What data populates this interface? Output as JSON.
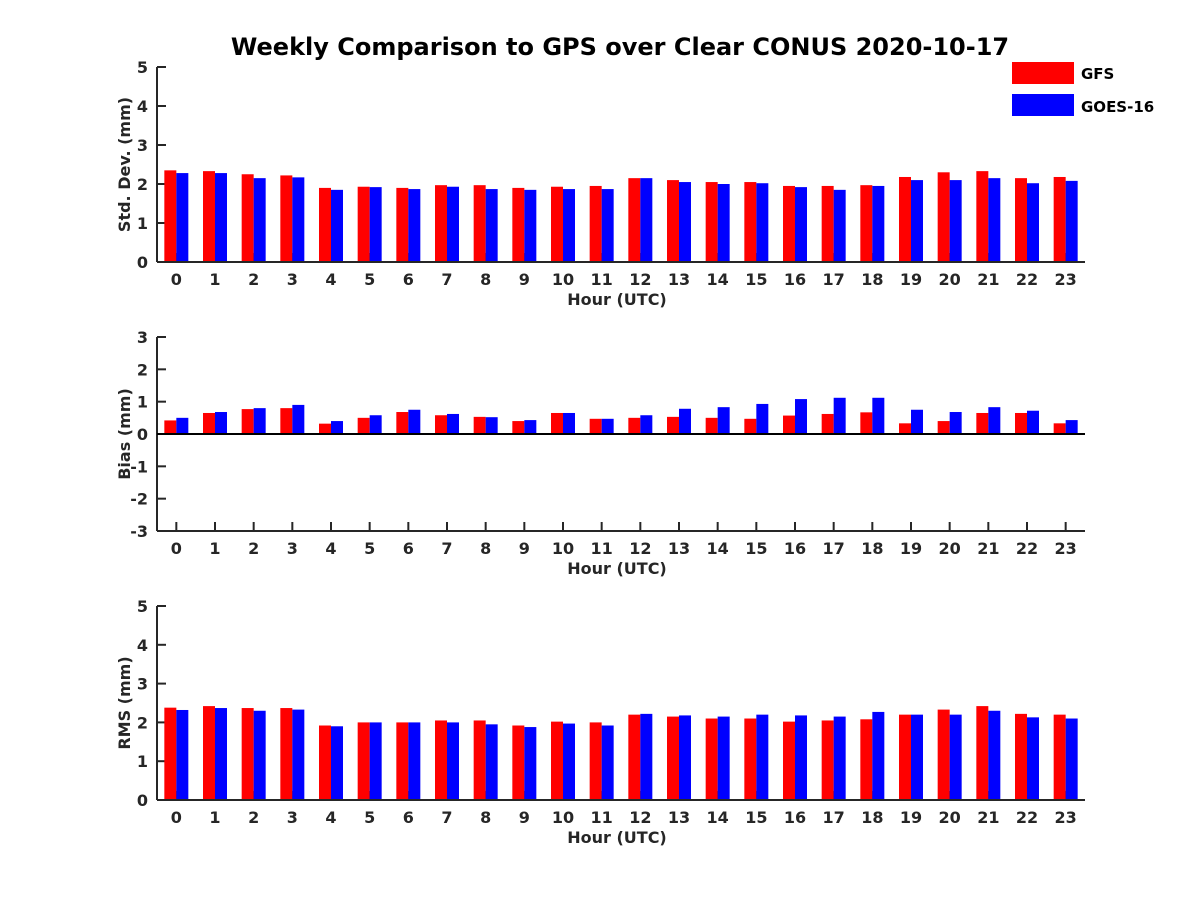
{
  "chart_data": {
    "type": "bar",
    "title": "Weekly Comparison to GPS over Clear CONUS 2020-10-17",
    "categories": [
      "0",
      "1",
      "2",
      "3",
      "4",
      "5",
      "6",
      "7",
      "8",
      "9",
      "10",
      "11",
      "12",
      "13",
      "14",
      "15",
      "16",
      "17",
      "18",
      "19",
      "20",
      "21",
      "22",
      "23"
    ],
    "legend": {
      "placement": "top-right"
    },
    "colors": {
      "GFS": "#ff0000",
      "GOES-16": "#0000ff"
    },
    "panels": [
      {
        "xlabel": "Hour (UTC)",
        "ylabel": "Std. Dev. (mm)",
        "ylim": [
          0,
          5
        ],
        "yticks": [
          "0",
          "1",
          "2",
          "3",
          "4",
          "5"
        ],
        "series": [
          {
            "name": "GFS",
            "values": [
              2.35,
              2.33,
              2.25,
              2.22,
              1.9,
              1.93,
              1.9,
              1.97,
              1.97,
              1.9,
              1.93,
              1.95,
              2.15,
              2.1,
              2.05,
              2.05,
              1.95,
              1.95,
              1.97,
              2.18,
              2.3,
              2.33,
              2.15,
              2.18
            ]
          },
          {
            "name": "GOES-16",
            "values": [
              2.28,
              2.28,
              2.15,
              2.17,
              1.85,
              1.92,
              1.87,
              1.93,
              1.87,
              1.85,
              1.87,
              1.87,
              2.15,
              2.05,
              2.0,
              2.02,
              1.92,
              1.85,
              1.95,
              2.1,
              2.1,
              2.15,
              2.02,
              2.08
            ]
          }
        ]
      },
      {
        "xlabel": "Hour (UTC)",
        "ylabel": "Bias (mm)",
        "ylim": [
          -3,
          3
        ],
        "yticks": [
          "-3",
          "-2",
          "-1",
          "0",
          "1",
          "2",
          "3"
        ],
        "series": [
          {
            "name": "GFS",
            "values": [
              0.42,
              0.65,
              0.77,
              0.8,
              0.32,
              0.5,
              0.68,
              0.58,
              0.53,
              0.4,
              0.65,
              0.47,
              0.5,
              0.53,
              0.5,
              0.47,
              0.57,
              0.62,
              0.67,
              0.33,
              0.4,
              0.65,
              0.65,
              0.33
            ]
          },
          {
            "name": "GOES-16",
            "values": [
              0.5,
              0.68,
              0.8,
              0.9,
              0.4,
              0.58,
              0.75,
              0.62,
              0.52,
              0.43,
              0.65,
              0.47,
              0.58,
              0.78,
              0.83,
              0.93,
              1.08,
              1.12,
              1.12,
              0.75,
              0.68,
              0.83,
              0.72,
              0.43
            ]
          }
        ]
      },
      {
        "xlabel": "Hour (UTC)",
        "ylabel": "RMS (mm)",
        "ylim": [
          0,
          5
        ],
        "yticks": [
          "0",
          "1",
          "2",
          "3",
          "4",
          "5"
        ],
        "series": [
          {
            "name": "GFS",
            "values": [
              2.38,
              2.42,
              2.37,
              2.37,
              1.92,
              2.0,
              2.0,
              2.05,
              2.05,
              1.92,
              2.02,
              2.0,
              2.2,
              2.15,
              2.1,
              2.1,
              2.02,
              2.05,
              2.08,
              2.2,
              2.33,
              2.42,
              2.22,
              2.2
            ]
          },
          {
            "name": "GOES-16",
            "values": [
              2.32,
              2.37,
              2.3,
              2.33,
              1.9,
              2.0,
              2.0,
              2.0,
              1.95,
              1.88,
              1.97,
              1.92,
              2.22,
              2.18,
              2.15,
              2.2,
              2.18,
              2.15,
              2.27,
              2.2,
              2.2,
              2.3,
              2.13,
              2.1
            ]
          }
        ]
      }
    ]
  }
}
